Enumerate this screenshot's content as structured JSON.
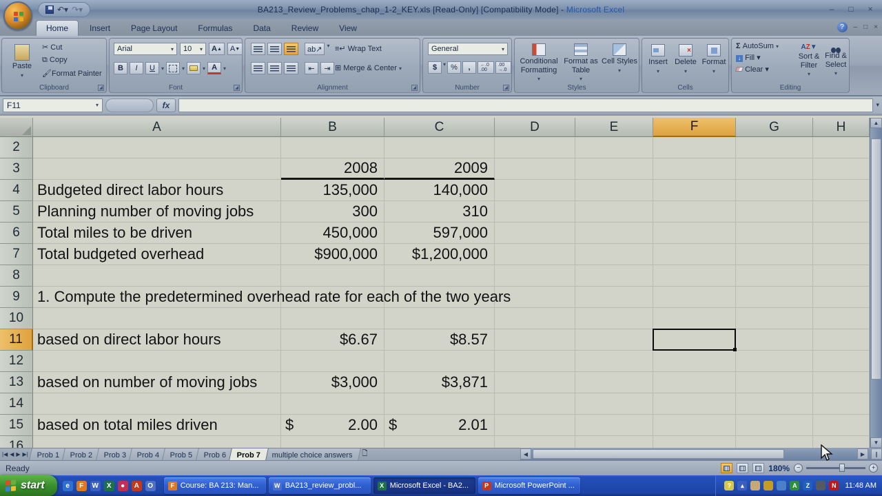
{
  "window": {
    "title_main": "BA213_Review_Problems_chap_1-2_KEY.xls  [Read-Only]  [Compatibility Mode] - ",
    "app_name": "Microsoft Excel",
    "minimize": "–",
    "restore": "□",
    "close": "×"
  },
  "ribbon": {
    "tabs": [
      {
        "label": "Home",
        "active": true
      },
      {
        "label": "Insert"
      },
      {
        "label": "Page Layout"
      },
      {
        "label": "Formulas"
      },
      {
        "label": "Data"
      },
      {
        "label": "Review"
      },
      {
        "label": "View"
      }
    ],
    "clipboard": {
      "label": "Clipboard",
      "paste": "Paste",
      "cut": "Cut",
      "copy": "Copy",
      "format_painter": "Format Painter"
    },
    "font": {
      "label": "Font",
      "family": "Arial",
      "size": "10",
      "bold": "B",
      "italic": "I",
      "underline": "U",
      "grow": "A",
      "shrink": "A"
    },
    "alignment": {
      "label": "Alignment",
      "wrap": "Wrap Text",
      "merge": "Merge & Center"
    },
    "number": {
      "label": "Number",
      "format": "General",
      "currency": "$",
      "percent": "%",
      "comma": ",",
      "inc_decimal": "←.0 .00",
      "dec_decimal": ".00 →.0"
    },
    "styles": {
      "label": "Styles",
      "conditional": "Conditional Formatting",
      "table": "Format as Table",
      "cell": "Cell Styles"
    },
    "cells": {
      "label": "Cells",
      "insert": "Insert",
      "del": "Delete",
      "format": "Format"
    },
    "editing": {
      "label": "Editing",
      "autosum": "AutoSum",
      "sigma": "Σ",
      "fill": "Fill",
      "clear": "Clear",
      "sort": "Sort & Filter",
      "find": "Find & Select"
    }
  },
  "formula_bar": {
    "name_box": "F11",
    "fx": "fx",
    "formula": ""
  },
  "spreadsheet": {
    "selected_cell": "F11",
    "selected_column": "F",
    "selected_row": "11",
    "columns": [
      "A",
      "B",
      "C",
      "D",
      "E",
      "F",
      "G",
      "H"
    ],
    "rows": [
      {
        "n": "2"
      },
      {
        "n": "3",
        "B": "2008",
        "C": "2009",
        "year_underline": true
      },
      {
        "n": "4",
        "A": "Budgeted direct labor hours",
        "B": "135,000",
        "C": "140,000"
      },
      {
        "n": "5",
        "A": "Planning number of moving jobs",
        "B": "300",
        "C": "310"
      },
      {
        "n": "6",
        "A": "Total miles to be driven",
        "B": "450,000",
        "C": "597,000"
      },
      {
        "n": "7",
        "A": "Total budgeted overhead",
        "B": "$900,000",
        "C": "$1,200,000"
      },
      {
        "n": "8"
      },
      {
        "n": "9",
        "A": "1. Compute the predetermined overhead rate for each of the two years",
        "spill": true
      },
      {
        "n": "10"
      },
      {
        "n": "11",
        "A": "based on direct labor hours",
        "B": "$6.67",
        "C": "$8.57"
      },
      {
        "n": "12"
      },
      {
        "n": "13",
        "A": "based on number of moving jobs",
        "B": "$3,000",
        "C": "$3,871"
      },
      {
        "n": "14"
      },
      {
        "n": "15",
        "A": "based on total miles driven",
        "B": {
          "p": "$",
          "v": "2.00"
        },
        "C": {
          "p": "$",
          "v": "2.01"
        }
      },
      {
        "n": "16"
      }
    ]
  },
  "sheet_tabs": {
    "tabs": [
      {
        "label": "Prob 1"
      },
      {
        "label": "Prob 2"
      },
      {
        "label": "Prob 3"
      },
      {
        "label": "Prob 4"
      },
      {
        "label": "Prob 5"
      },
      {
        "label": "Prob 6"
      },
      {
        "label": "Prob 7",
        "active": true
      },
      {
        "label": "multiple choice answers"
      }
    ]
  },
  "status_bar": {
    "mode": "Ready",
    "zoom": "180%"
  },
  "taskbar": {
    "start_label": "start",
    "clock": "11:48 AM",
    "buttons": [
      {
        "label": "Course: BA 213: Man...",
        "icon": "firefox-icon",
        "glyph": "F",
        "color": "#e07820"
      },
      {
        "label": "BA213_review_probl...",
        "icon": "document-icon",
        "glyph": "W",
        "color": "#4a6fd0"
      },
      {
        "label": "Microsoft Excel - BA2...",
        "icon": "excel-icon",
        "glyph": "X",
        "color": "#1e7145",
        "active": true
      },
      {
        "label": "Microsoft PowerPoint ...",
        "icon": "powerpoint-icon",
        "glyph": "P",
        "color": "#c4381c"
      }
    ],
    "quick_launch": [
      {
        "name": "internet-explorer-icon",
        "glyph": "e",
        "color": "#2e6fd0"
      },
      {
        "name": "firefox-icon",
        "glyph": "F",
        "color": "#e07820"
      },
      {
        "name": "word-icon",
        "glyph": "W",
        "color": "#3a5fc0"
      },
      {
        "name": "excel-icon",
        "glyph": "X",
        "color": "#1e7145"
      },
      {
        "name": "media-player-icon",
        "glyph": "●",
        "color": "#c03050"
      },
      {
        "name": "acrobat-icon",
        "glyph": "A",
        "color": "#c4381c"
      },
      {
        "name": "outlook-icon",
        "glyph": "O",
        "color": "#5070c8"
      }
    ],
    "tray": [
      {
        "name": "help-tray-icon",
        "glyph": "?",
        "color": "#d8c84a"
      },
      {
        "name": "collapse-tray-icon",
        "glyph": "▴",
        "color": "#3a5fc0"
      },
      {
        "name": "messenger-tray-icon",
        "glyph": "",
        "color": "#c8a878"
      },
      {
        "name": "shield-tray-icon",
        "glyph": "",
        "color": "#c89a28"
      },
      {
        "name": "network-tray-icon",
        "glyph": "",
        "color": "#4a80c8"
      },
      {
        "name": "antivirus-tray-icon",
        "glyph": "A",
        "color": "#2e8f3a"
      },
      {
        "name": "z-app-tray-icon",
        "glyph": "Z",
        "color": "#2060b8"
      },
      {
        "name": "volume-tray-icon",
        "glyph": "",
        "color": "#555a60"
      },
      {
        "name": "netnanny-tray-icon",
        "glyph": "N",
        "color": "#c01818"
      }
    ]
  }
}
